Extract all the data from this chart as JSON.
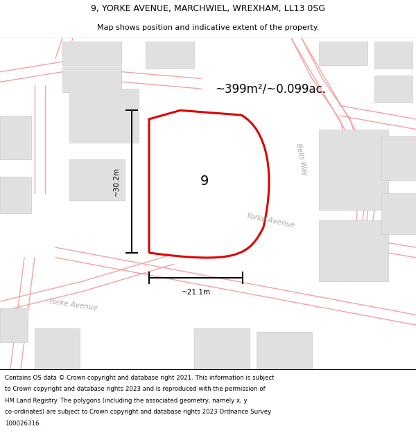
{
  "title_line1": "9, YORKE AVENUE, MARCHWIEL, WREXHAM, LL13 0SG",
  "title_line2": "Map shows position and indicative extent of the property.",
  "area_text": "~399m²/~0.099ac.",
  "label_9": "9",
  "dim_height": "~30.2m",
  "dim_width": "~21.1m",
  "road_label_bells": "Bells Way",
  "road_label_yorke1": "Yorke Avenue",
  "road_label_yorke2": "Yorke Avenue",
  "footer_lines": [
    "Contains OS data © Crown copyright and database right 2021. This information is subject",
    "to Crown copyright and database rights 2023 and is reproduced with the permission of",
    "HM Land Registry. The polygons (including the associated geometry, namely x, y",
    "co-ordinates) are subject to Crown copyright and database rights 2023 Ordnance Survey",
    "100026316."
  ],
  "map_bg": "#f7f7f7",
  "building_fill": "#e0e0e0",
  "building_edge": "#cccccc",
  "red_color": "#dd0000",
  "road_color": "#f5a0a0",
  "inner_bld_fill": "#d4d4d4",
  "title_fontsize": 9.0,
  "subtitle_fontsize": 8.0,
  "area_fontsize": 12.0,
  "footer_fontsize": 6.2
}
